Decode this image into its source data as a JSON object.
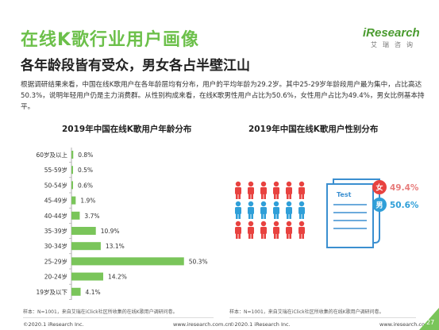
{
  "header": {
    "title": "在线K歌行业用户画像",
    "subtitle": "各年龄段皆有受众，男女各占半壁江山",
    "paragraph": "根据调研结果来看，中国在线K歌用户在各年龄层均有分布，用户的平均年龄为29.2岁。其中25-29岁年龄段用户最为集中，占比高达50.3%，说明年轻用户仍是主力消费群。从性别构成来看，在线K歌男性用户占比为50.6%，女性用户占比为49.4%，男女比例基本持平。"
  },
  "logo": {
    "main": "iResearch",
    "sub": "艾瑞咨询"
  },
  "colors": {
    "accent": "#6cc04a",
    "bar": "#7ac55a",
    "female": "#e8423f",
    "male": "#2f9fd8"
  },
  "chart_data": [
    {
      "type": "bar",
      "orientation": "horizontal",
      "title": "2019年中国在线K歌用户年龄分布",
      "categories": [
        "60岁及以上",
        "55-59岁",
        "50-54岁",
        "45-49岁",
        "40-44岁",
        "35-39岁",
        "30-34岁",
        "25-29岁",
        "20-24岁",
        "19岁及以下"
      ],
      "values": [
        0.8,
        0.5,
        0.6,
        1.9,
        3.7,
        10.9,
        13.1,
        50.3,
        14.2,
        4.1
      ],
      "labels": [
        "0.8%",
        "0.5%",
        "0.6%",
        "1.9%",
        "3.7%",
        "10.9%",
        "13.1%",
        "50.3%",
        "14.2%",
        "4.1%"
      ],
      "xlim": [
        0,
        55
      ]
    },
    {
      "type": "pie",
      "title": "2019年中国在线K歌用户性别分布",
      "categories": [
        "女",
        "男"
      ],
      "values": [
        49.4,
        50.6
      ],
      "labels": [
        "49.4%",
        "50.6%"
      ],
      "icon_text": "Test"
    }
  ],
  "notes": {
    "left": "样本：N=1001，来自艾瑞在iClick社区所收集的在线K歌用户调研问卷。",
    "right": "样本：N=1001，来自艾瑞在iClick社区所收集的在线K歌用户调研问卷。"
  },
  "footer": {
    "copyright": "©2020.1 iResearch Inc.",
    "url": "www.iresearch.com.cn",
    "page": "27"
  }
}
